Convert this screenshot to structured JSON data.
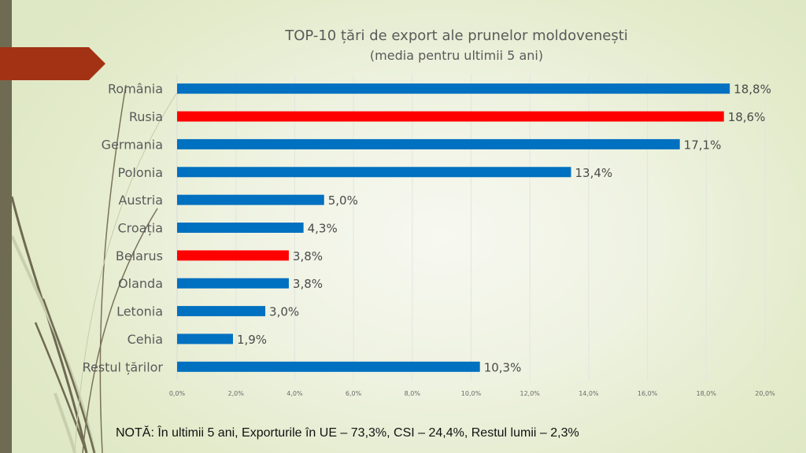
{
  "slide": {
    "title_line1": "TOP-10 țări de export ale prunelor moldovenești",
    "title_line2": "(media pentru ultimii 5 ani)",
    "note": "NOTĂ: În ultimii 5 ani, Exporturile în UE – 73,3%, CSI – 24,4%, Restul lumii – 2,3%",
    "colors": {
      "left_strip": "#6f6a52",
      "arrow_banner": "#a33214",
      "bar_default": "#0070c0",
      "bar_highlight": "#ff0000"
    }
  },
  "chart_data": {
    "type": "bar",
    "orientation": "horizontal",
    "title": "TOP-10 țări de export ale prunelor moldovenești",
    "subtitle": "(media pentru ultimii 5 ani)",
    "xlabel": "",
    "ylabel": "",
    "xlim": [
      0,
      20
    ],
    "x_ticks": [
      0,
      2,
      4,
      6,
      8,
      10,
      12,
      14,
      16,
      18,
      20
    ],
    "x_tick_labels": [
      "0,0%",
      "2,0%",
      "4,0%",
      "6,0%",
      "8,0%",
      "10,0%",
      "12,0%",
      "14,0%",
      "16,0%",
      "18,0%",
      "20,0%"
    ],
    "grid": true,
    "legend": "none",
    "categories": [
      "România",
      "Rusia",
      "Germania",
      "Polonia",
      "Austria",
      "Croația",
      "Belarus",
      "Olanda",
      "Letonia",
      "Cehia",
      "Restul țărilor"
    ],
    "values": [
      18.8,
      18.6,
      17.1,
      13.4,
      5.0,
      4.3,
      3.8,
      3.8,
      3.0,
      1.9,
      10.3
    ],
    "value_labels": [
      "18,8%",
      "18,6%",
      "17,1%",
      "13,4%",
      "5,0%",
      "4,3%",
      "3,8%",
      "3,8%",
      "3,0%",
      "1,9%",
      "10,3%"
    ],
    "highlighted": [
      "Rusia",
      "Belarus"
    ],
    "unit": "%"
  }
}
